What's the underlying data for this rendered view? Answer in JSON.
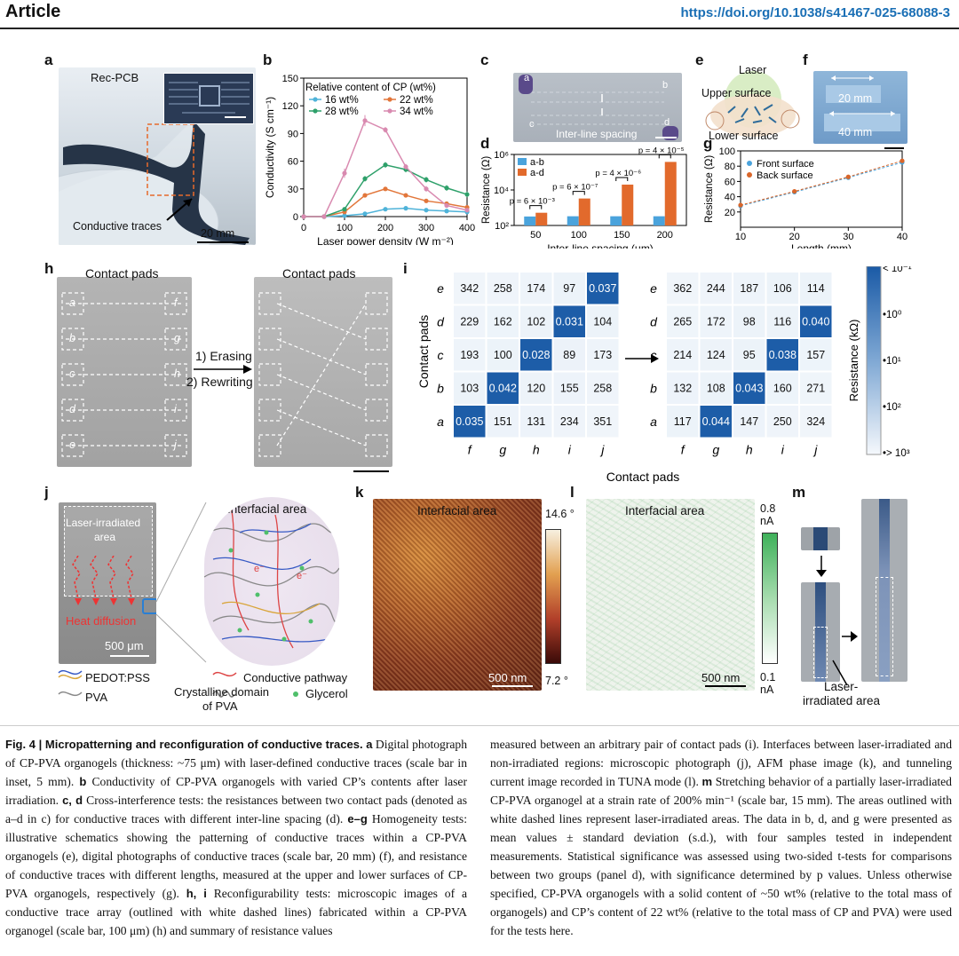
{
  "header": {
    "title": "Article",
    "doi": "https://doi.org/10.1038/s41467-025-68088-3"
  },
  "labels": {
    "a": "a",
    "b": "b",
    "c": "c",
    "d": "d",
    "e": "e",
    "f": "f",
    "g": "g",
    "h": "h",
    "i": "i",
    "j": "j",
    "k": "k",
    "l": "l",
    "m": "m"
  },
  "panel_a": {
    "title": "Rec-PCB",
    "traces": "Conductive traces",
    "scale": "20 mm"
  },
  "panel_c": {
    "spacing": "Inter-line spacing",
    "pins": [
      "a",
      "b",
      "c",
      "d"
    ]
  },
  "panel_e": {
    "laser": "Laser",
    "upper": "Upper surface",
    "lower": "Lower surface"
  },
  "panel_f": {
    "s1": "20 mm",
    "s2": "40 mm"
  },
  "panel_h": {
    "pads_left": "Contact pads",
    "pads_right": "Contact pads",
    "step1": "1) Erasing",
    "step2": "2) Rewriting",
    "rows": [
      "a",
      "b",
      "c",
      "d",
      "e"
    ],
    "cols": [
      "f",
      "g",
      "h",
      "i",
      "j"
    ]
  },
  "panel_i": {
    "ylabel": "Contact pads",
    "xlabel": "Contact pads",
    "cbar_label": "Resistance (kΩ)",
    "cbar_ticks": [
      "< 10⁻¹",
      "•10⁰",
      "•10¹",
      "•10²",
      "•> 10³"
    ]
  },
  "panel_j": {
    "irr": "Laser-irradiated",
    "irr2": "area",
    "heat": "Heat diffusion",
    "scale": "500 μm",
    "interfacial": "Interfacial area",
    "e1": "e⁻",
    "e2": "e⁻",
    "legend": {
      "pedot": "PEDOT:PSS",
      "pathway": "Conductive pathway",
      "pva": "PVA",
      "crys1": "Crystalline domain",
      "crys2": "of PVA",
      "gly": "Glycerol"
    }
  },
  "panel_k": {
    "title": "Interfacial area",
    "scale": "500 nm",
    "max": "14.6 °",
    "min": "7.2 °"
  },
  "panel_l": {
    "title": "Interfacial area",
    "scale": "500 nm",
    "max1": "0.8",
    "max2": "nA",
    "min1": "0.1",
    "min2": "nA"
  },
  "panel_m": {
    "lab1": "Laser-",
    "lab2": "irradiated area"
  },
  "chart_data": [
    {
      "panel": "b",
      "type": "line",
      "xlabel": "Laser power density (W m⁻²)",
      "ylabel": "Conductivity (S cm⁻¹)",
      "legend_title": "Relative content of CP (wt%)",
      "x": [
        0,
        50,
        100,
        150,
        200,
        250,
        300,
        350,
        400
      ],
      "xlim": [
        0,
        400
      ],
      "ylim": [
        0,
        150
      ],
      "xticks": [
        0,
        100,
        200,
        300,
        400
      ],
      "yticks": [
        0,
        30,
        60,
        90,
        120,
        150
      ],
      "series": [
        {
          "name": "16 wt%",
          "color": "#4fb3d9",
          "values": [
            0,
            0,
            1,
            3,
            8,
            9,
            7,
            6,
            5
          ],
          "err": [
            0,
            0,
            0.5,
            1,
            1,
            1,
            1,
            1,
            1
          ]
        },
        {
          "name": "22 wt%",
          "color": "#e2763a",
          "values": [
            0,
            0,
            5,
            23,
            30,
            23,
            17,
            14,
            10
          ],
          "err": [
            0,
            0,
            1,
            2,
            2,
            2,
            2,
            2,
            2
          ]
        },
        {
          "name": "28 wt%",
          "color": "#2ea06a",
          "values": [
            0,
            0,
            8,
            41,
            56,
            51,
            40,
            31,
            24
          ],
          "err": [
            0,
            0,
            2,
            3,
            3,
            3,
            3,
            3,
            3
          ]
        },
        {
          "name": "34 wt%",
          "color": "#d98ab0",
          "values": [
            0,
            0,
            47,
            104,
            94,
            54,
            30,
            12,
            7
          ],
          "err": [
            0,
            0,
            5,
            6,
            3,
            3,
            3,
            2,
            2
          ]
        }
      ]
    },
    {
      "panel": "d",
      "type": "bar",
      "xlabel": "Inter-line spacing (μm)",
      "ylabel": "Resistance (Ω)",
      "yscale": "log",
      "ylim": [
        100,
        1000000
      ],
      "yticks": [
        "10²",
        "10⁴",
        "10⁶"
      ],
      "categories": [
        "50",
        "100",
        "150",
        "200"
      ],
      "series": [
        {
          "name": "a-b",
          "color": "#4aa3dc",
          "values": [
            320,
            330,
            330,
            330
          ]
        },
        {
          "name": "a-d",
          "color": "#e26a2c",
          "values": [
            520,
            3300,
            20000,
            380000
          ]
        }
      ],
      "pvalues": [
        "p = 6 × 10⁻³",
        "p = 6 × 10⁻⁷",
        "p = 4 × 10⁻⁶",
        "p = 4 × 10⁻⁵"
      ]
    },
    {
      "panel": "g",
      "type": "scatter",
      "xlabel": "Length (mm)",
      "ylabel": "Resistance (Ω)",
      "xlim": [
        10,
        40
      ],
      "ylim": [
        0,
        100
      ],
      "xticks": [
        10,
        20,
        30,
        40
      ],
      "yticks": [
        20,
        40,
        60,
        80,
        100
      ],
      "series": [
        {
          "name": "Front surface",
          "color": "#4aa3dc",
          "x": [
            10,
            20,
            30,
            40
          ],
          "values": [
            28,
            46,
            65,
            85
          ]
        },
        {
          "name": "Back surface",
          "color": "#d9662a",
          "x": [
            10,
            20,
            30,
            40
          ],
          "values": [
            29,
            47,
            66,
            87
          ]
        }
      ]
    },
    {
      "panel": "i-left",
      "type": "heatmap",
      "rows": [
        "e",
        "d",
        "c",
        "b",
        "a"
      ],
      "cols": [
        "f",
        "g",
        "h",
        "i",
        "j"
      ],
      "values": [
        [
          "342",
          "258",
          "174",
          "97",
          "0.037"
        ],
        [
          "229",
          "162",
          "102",
          "0.031",
          "104"
        ],
        [
          "193",
          "100",
          "0.028",
          "89",
          "173"
        ],
        [
          "103",
          "0.042",
          "120",
          "155",
          "258"
        ],
        [
          "0.035",
          "151",
          "131",
          "234",
          "351"
        ]
      ]
    },
    {
      "panel": "i-right",
      "type": "heatmap",
      "rows": [
        "e",
        "d",
        "c",
        "b",
        "a"
      ],
      "cols": [
        "f",
        "g",
        "h",
        "i",
        "j"
      ],
      "values": [
        [
          "362",
          "244",
          "187",
          "106",
          "114"
        ],
        [
          "265",
          "172",
          "98",
          "116",
          "0.040"
        ],
        [
          "214",
          "124",
          "95",
          "0.038",
          "157"
        ],
        [
          "132",
          "108",
          "0.043",
          "160",
          "271"
        ],
        [
          "117",
          "0.044",
          "147",
          "250",
          "324"
        ]
      ]
    }
  ],
  "caption": {
    "left": [
      {
        "b": "Fig. 4 | Micropatterning and reconfiguration of conductive traces. a",
        "t": " Digital photograph of CP-PVA organogels (thickness: ~75 μm) with laser-defined conductive traces (scale bar in inset, 5 mm). "
      },
      {
        "b": "b",
        "t": " Conductivity of CP-PVA organogels with varied CP’s contents after laser irradiation. "
      },
      {
        "b": "c, d",
        "t": " Cross-interference tests: the resistances between two contact pads (denoted as a–d in c) for conductive traces with different inter-line spacing (d). "
      },
      {
        "b": "e–g",
        "t": " Homogeneity tests: illustrative schematics showing the patterning of conductive traces within a CP-PVA organogels (e), digital photographs of conductive traces (scale bar, 20 mm) (f), and resistance of conductive traces with different lengths, measured at the upper and lower surfaces of CP-PVA organogels, respectively (g). "
      },
      {
        "b": "h, i",
        "t": " Reconfigurability tests: microscopic images of a conductive trace array (outlined with white dashed lines) fabricated within a CP-PVA organogel (scale bar, 100 μm) (h) and summary of resistance values"
      }
    ],
    "right": [
      {
        "b": "",
        "t": "measured between an arbitrary pair of contact pads (i). Interfaces between laser-irradiated and non-irradiated regions: microscopic photograph (j), AFM phase image (k), and tunneling current image recorded in TUNA mode (l). "
      },
      {
        "b": "m",
        "t": " Stretching behavior of a partially laser-irradiated CP-PVA organogel at a strain rate of 200% min⁻¹ (scale bar, 15 mm). The areas outlined with white dashed lines represent laser-irradiated areas. The data in b, d, and g were presented as mean values ± standard deviation (s.d.), with four samples tested in independent measurements. Statistical significance was assessed using two-sided t-tests for comparisons between two groups (panel d), with significance determined by p values. Unless otherwise specified, CP-PVA organogels with a solid content of ~50 wt% (relative to the total mass of organogels) and CP’s content of 22 wt% (relative to the total mass of CP and PVA) were used for the tests here."
      }
    ]
  }
}
